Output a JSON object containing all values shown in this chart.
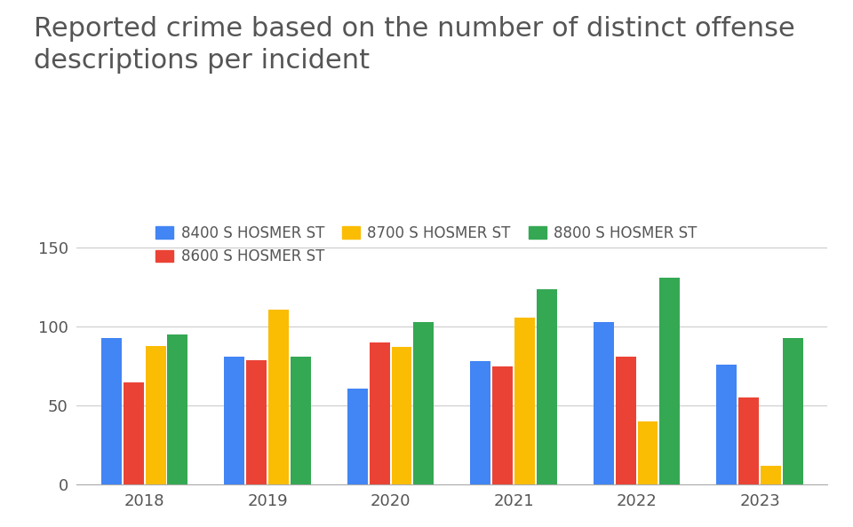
{
  "title": "Reported crime based on the number of distinct offense\ndescriptions per incident",
  "years": [
    2018,
    2019,
    2020,
    2021,
    2022,
    2023
  ],
  "series": {
    "8400 S HOSMER ST": [
      93,
      81,
      61,
      78,
      103,
      76
    ],
    "8600 S HOSMER ST": [
      65,
      79,
      90,
      75,
      81,
      55
    ],
    "8700 S HOSMER ST": [
      88,
      111,
      87,
      106,
      40,
      12
    ],
    "8800 S HOSMER ST": [
      95,
      81,
      103,
      124,
      131,
      93
    ]
  },
  "colors": {
    "8400 S HOSMER ST": "#4285F4",
    "8600 S HOSMER ST": "#EA4335",
    "8700 S HOSMER ST": "#FBBC04",
    "8800 S HOSMER ST": "#34A853"
  },
  "ylim": [
    0,
    160
  ],
  "yticks": [
    0,
    50,
    100,
    150
  ],
  "background_color": "#ffffff",
  "title_fontsize": 22,
  "legend_fontsize": 12,
  "tick_fontsize": 13,
  "bar_width": 0.18,
  "title_color": "#555555",
  "tick_color": "#555555"
}
